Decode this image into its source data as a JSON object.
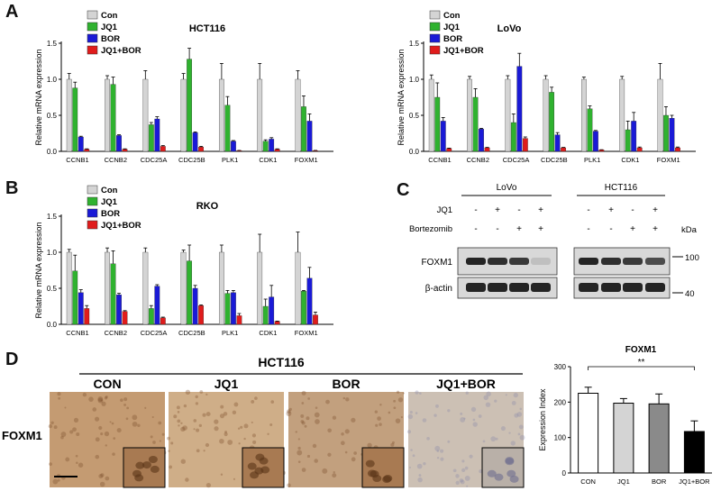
{
  "panel_letters": [
    "A",
    "B",
    "C",
    "D"
  ],
  "legend": [
    "Con",
    "JQ1",
    "BOR",
    "JQ1+BOR"
  ],
  "series_colors": [
    "#d4d4d4",
    "#2fb22f",
    "#1a1ad6",
    "#e01c1c"
  ],
  "chart_data": [
    {
      "type": "bar",
      "title": "HCT116",
      "ylabel": "Relative mRNA expression",
      "ylim": [
        0,
        1.5
      ],
      "yticks": [
        "0.0",
        "0.5",
        "1.0",
        "1.5"
      ],
      "categories": [
        "CCNB1",
        "CCNB2",
        "CDC25A",
        "CDC25B",
        "PLK1",
        "CDK1",
        "FOXM1"
      ],
      "series": [
        {
          "name": "Con",
          "values": [
            1.0,
            1.0,
            1.0,
            1.0,
            1.0,
            1.0,
            1.0
          ],
          "errors": [
            0.08,
            0.05,
            0.12,
            0.08,
            0.22,
            0.22,
            0.12
          ]
        },
        {
          "name": "JQ1",
          "values": [
            0.88,
            0.93,
            0.37,
            1.28,
            0.64,
            0.14,
            0.62
          ],
          "errors": [
            0.08,
            0.1,
            0.03,
            0.15,
            0.12,
            0.02,
            0.15
          ]
        },
        {
          "name": "BOR",
          "values": [
            0.2,
            0.22,
            0.45,
            0.26,
            0.14,
            0.17,
            0.42
          ],
          "errors": [
            0.01,
            0.01,
            0.03,
            0.01,
            0.01,
            0.02,
            0.1
          ]
        },
        {
          "name": "JQ1+BOR",
          "values": [
            0.03,
            0.03,
            0.07,
            0.06,
            0.01,
            0.03,
            0.01
          ],
          "errors": [
            0.005,
            0.005,
            0.01,
            0.01,
            0.003,
            0.005,
            0.003
          ]
        }
      ]
    },
    {
      "type": "bar",
      "title": "LoVo",
      "ylabel": "Relative mRNA expression",
      "ylim": [
        0,
        1.5
      ],
      "yticks": [
        "0.0",
        "0.5",
        "1.0",
        "1.5"
      ],
      "categories": [
        "CCNB1",
        "CCNB2",
        "CDC25A",
        "CDC25B",
        "PLK1",
        "CDK1",
        "FOXM1"
      ],
      "series": [
        {
          "name": "Con",
          "values": [
            1.0,
            1.0,
            1.0,
            1.0,
            1.0,
            1.0,
            1.0
          ],
          "errors": [
            0.06,
            0.04,
            0.05,
            0.05,
            0.03,
            0.04,
            0.22
          ]
        },
        {
          "name": "JQ1",
          "values": [
            0.75,
            0.75,
            0.4,
            0.82,
            0.59,
            0.3,
            0.5
          ],
          "errors": [
            0.2,
            0.12,
            0.12,
            0.07,
            0.04,
            0.12,
            0.12
          ]
        },
        {
          "name": "BOR",
          "values": [
            0.42,
            0.31,
            1.18,
            0.23,
            0.28,
            0.42,
            0.46
          ],
          "errors": [
            0.05,
            0.01,
            0.18,
            0.03,
            0.01,
            0.12,
            0.04
          ]
        },
        {
          "name": "JQ1+BOR",
          "values": [
            0.04,
            0.05,
            0.18,
            0.05,
            0.02,
            0.05,
            0.05
          ],
          "errors": [
            0.005,
            0.005,
            0.02,
            0.005,
            0.003,
            0.01,
            0.01
          ]
        }
      ]
    },
    {
      "type": "bar",
      "title": "RKO",
      "ylabel": "Relative mRNA expression",
      "ylim": [
        0,
        1.5
      ],
      "yticks": [
        "0.0",
        "0.5",
        "1.0",
        "1.5"
      ],
      "categories": [
        "CCNB1",
        "CCNB2",
        "CDC25A",
        "CDC25B",
        "PLK1",
        "CDK1",
        "FOXM1"
      ],
      "series": [
        {
          "name": "Con",
          "values": [
            1.0,
            1.0,
            1.0,
            1.0,
            1.0,
            1.0,
            1.0
          ],
          "errors": [
            0.04,
            0.06,
            0.06,
            0.03,
            0.1,
            0.25,
            0.28
          ]
        },
        {
          "name": "JQ1",
          "values": [
            0.74,
            0.84,
            0.22,
            0.88,
            0.43,
            0.25,
            0.46
          ],
          "errors": [
            0.22,
            0.18,
            0.04,
            0.22,
            0.04,
            0.1,
            0.01
          ]
        },
        {
          "name": "BOR",
          "values": [
            0.44,
            0.41,
            0.53,
            0.5,
            0.44,
            0.38,
            0.64
          ],
          "errors": [
            0.04,
            0.02,
            0.02,
            0.04,
            0.03,
            0.16,
            0.15
          ]
        },
        {
          "name": "JQ1+BOR",
          "values": [
            0.22,
            0.18,
            0.09,
            0.26,
            0.12,
            0.04,
            0.13
          ],
          "errors": [
            0.04,
            0.01,
            0.01,
            0.01,
            0.03,
            0.005,
            0.04
          ]
        }
      ]
    },
    {
      "type": "bar",
      "title": "FOXM1",
      "ylabel": "Expression Index",
      "ylim": [
        0,
        300
      ],
      "yticks": [
        "0",
        "100",
        "200",
        "300"
      ],
      "categories": [
        "CON",
        "JQ1",
        "BOR",
        "JQ1+BOR"
      ],
      "colors": [
        "#ffffff",
        "#d4d4d4",
        "#8a8a8a",
        "#000000"
      ],
      "values": [
        225,
        197,
        195,
        117
      ],
      "errors": [
        17,
        13,
        28,
        30
      ],
      "annotation": "**"
    }
  ],
  "western": {
    "groups": [
      "LoVo",
      "HCT116"
    ],
    "row_labels": [
      "JQ1",
      "Bortezomib"
    ],
    "jq1_signs": [
      "-",
      "+",
      "-",
      "+",
      "-",
      "+",
      "-",
      "+"
    ],
    "bortezomib_signs": [
      "-",
      "-",
      "+",
      "+",
      "-",
      "-",
      "+",
      "+"
    ],
    "bands": [
      "FOXM1",
      "β-actin"
    ],
    "kda_label": "kDa",
    "markers": [
      "100",
      "40"
    ]
  },
  "ihc": {
    "group_title": "HCT116",
    "row_label": "FOXM1",
    "columns": [
      "CON",
      "JQ1",
      "BOR",
      "JQ1+BOR"
    ]
  }
}
